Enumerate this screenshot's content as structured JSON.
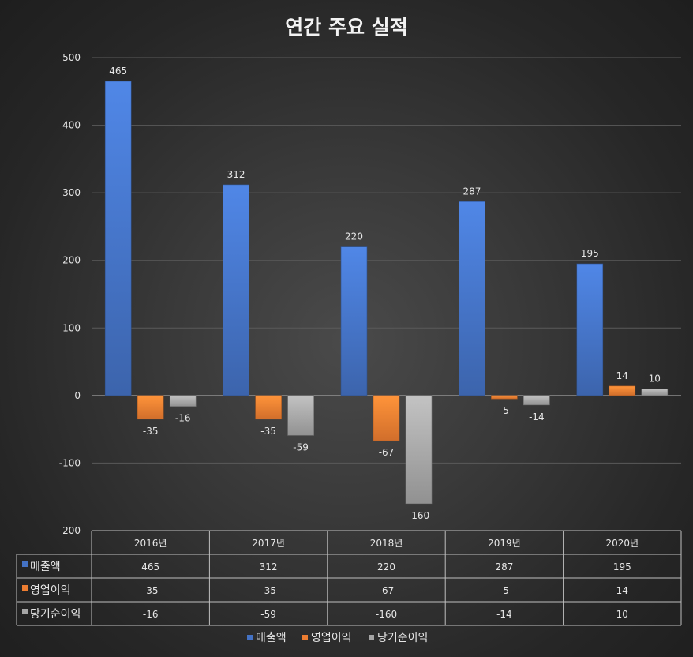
{
  "chart_data": {
    "type": "bar",
    "title": "연간 주요 실적",
    "categories": [
      "2016년",
      "2017년",
      "2018년",
      "2019년",
      "2020년"
    ],
    "series": [
      {
        "name": "매출액",
        "color": "#4472c4",
        "values": [
          465,
          312,
          220,
          287,
          195
        ]
      },
      {
        "name": "영업이익",
        "color": "#ed7d31",
        "values": [
          -35,
          -35,
          -67,
          -5,
          14
        ]
      },
      {
        "name": "당기순이익",
        "color": "#a5a5a5",
        "values": [
          -16,
          -59,
          -160,
          -14,
          10
        ]
      }
    ],
    "ylim": [
      -200,
      500
    ],
    "yticks": [
      500,
      400,
      300,
      200,
      100,
      0,
      -100,
      -200
    ],
    "grid": true,
    "data_table": true,
    "legend_position": "bottom"
  }
}
